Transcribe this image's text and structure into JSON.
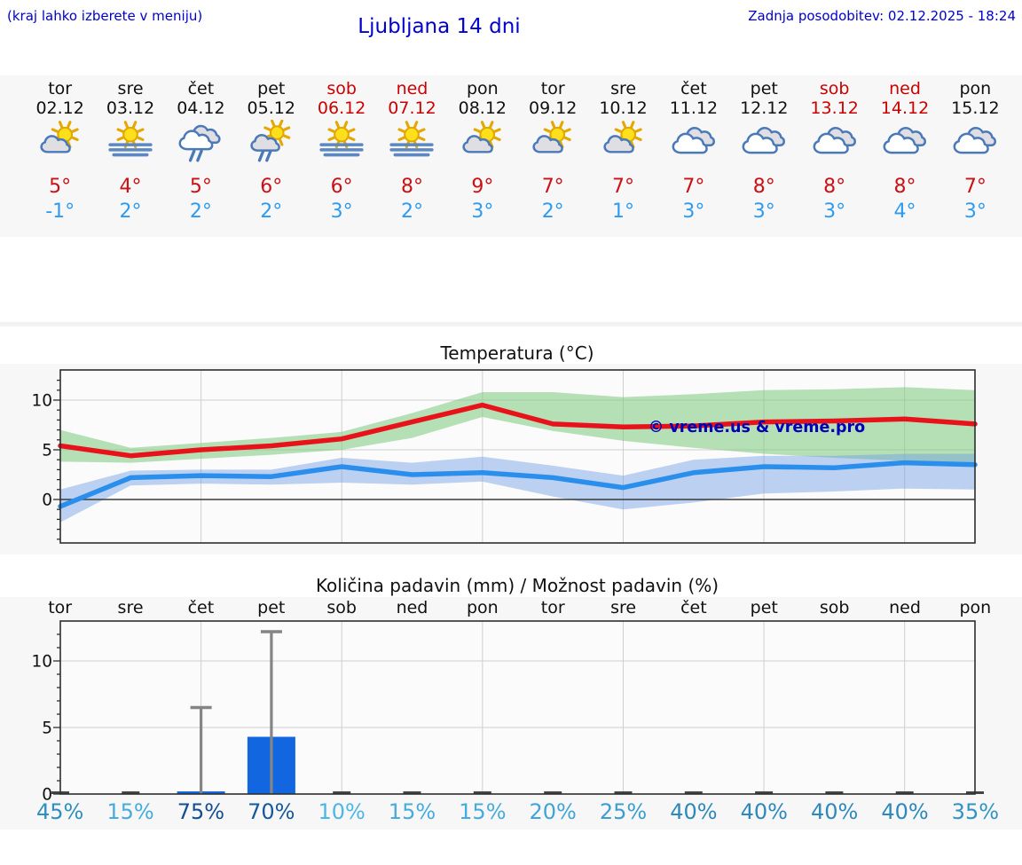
{
  "top": {
    "hint": "(kraj lahko izberete v meniju)",
    "title": "Ljubljana 14 dni",
    "updated": "Zadnja posodobitev: 02.12.2025 - 18:24"
  },
  "section_titles": {
    "temperature": "Temperatura (°C)",
    "precipitation": "Količina padavin (mm) / Možnost padavin (%)"
  },
  "days": [
    {
      "name": "tor",
      "date": "02.12",
      "weekend": false,
      "icon": "sun-cloud",
      "high": "5°",
      "low": "-1°",
      "prob": "45%",
      "prob_color": "#2e8fc0"
    },
    {
      "name": "sre",
      "date": "03.12",
      "weekend": false,
      "icon": "sun-fog",
      "high": "4°",
      "low": "2°",
      "prob": "15%",
      "prob_color": "#45acdd"
    },
    {
      "name": "čet",
      "date": "04.12",
      "weekend": false,
      "icon": "clouds-rain",
      "high": "5°",
      "low": "2°",
      "prob": "75%",
      "prob_color": "#124f92"
    },
    {
      "name": "pet",
      "date": "05.12",
      "weekend": false,
      "icon": "sun-cloud-rain",
      "high": "6°",
      "low": "2°",
      "prob": "70%",
      "prob_color": "#155a9e"
    },
    {
      "name": "sob",
      "date": "06.12",
      "weekend": true,
      "icon": "sun-fog",
      "high": "6°",
      "low": "3°",
      "prob": "10%",
      "prob_color": "#4db6e6"
    },
    {
      "name": "ned",
      "date": "07.12",
      "weekend": true,
      "icon": "sun-fog",
      "high": "8°",
      "low": "2°",
      "prob": "15%",
      "prob_color": "#45acdd"
    },
    {
      "name": "pon",
      "date": "08.12",
      "weekend": false,
      "icon": "sun-cloud",
      "high": "9°",
      "low": "3°",
      "prob": "15%",
      "prob_color": "#45acdd"
    },
    {
      "name": "tor",
      "date": "09.12",
      "weekend": false,
      "icon": "sun-cloud",
      "high": "7°",
      "low": "2°",
      "prob": "20%",
      "prob_color": "#40a5d6"
    },
    {
      "name": "sre",
      "date": "10.12",
      "weekend": false,
      "icon": "sun-cloud",
      "high": "7°",
      "low": "1°",
      "prob": "25%",
      "prob_color": "#3b9ecf"
    },
    {
      "name": "čet",
      "date": "11.12",
      "weekend": false,
      "icon": "clouds",
      "high": "7°",
      "low": "3°",
      "prob": "40%",
      "prob_color": "#2d89bb"
    },
    {
      "name": "pet",
      "date": "12.12",
      "weekend": false,
      "icon": "clouds",
      "high": "8°",
      "low": "3°",
      "prob": "40%",
      "prob_color": "#2d89bb"
    },
    {
      "name": "sob",
      "date": "13.12",
      "weekend": true,
      "icon": "clouds",
      "high": "8°",
      "low": "3°",
      "prob": "40%",
      "prob_color": "#2d89bb"
    },
    {
      "name": "ned",
      "date": "14.12",
      "weekend": true,
      "icon": "clouds",
      "high": "8°",
      "low": "4°",
      "prob": "40%",
      "prob_color": "#2d89bb"
    },
    {
      "name": "pon",
      "date": "15.12",
      "weekend": false,
      "icon": "clouds",
      "high": "7°",
      "low": "3°",
      "prob": "35%",
      "prob_color": "#3193c4"
    }
  ],
  "chart_data": [
    {
      "type": "line",
      "title": "Temperatura (°C)",
      "x_days": [
        "tor",
        "sre",
        "čet",
        "pet",
        "sob",
        "ned",
        "pon",
        "tor",
        "sre",
        "čet",
        "pet",
        "sob",
        "ned",
        "pon"
      ],
      "yticks": [
        0,
        5,
        10
      ],
      "ylim": [
        -4.4,
        13.0
      ],
      "grid": true,
      "watermark": "© vreme.us & vreme.pro",
      "series": [
        {
          "name": "high",
          "color": "#e8131a",
          "values": [
            5.4,
            4.4,
            5.0,
            5.4,
            6.1,
            7.8,
            9.5,
            7.6,
            7.3,
            7.4,
            7.8,
            7.9,
            8.1,
            7.6
          ]
        },
        {
          "name": "low",
          "color": "#2a8fec",
          "values": [
            -0.7,
            2.2,
            2.4,
            2.3,
            3.3,
            2.5,
            2.7,
            2.2,
            1.2,
            2.7,
            3.3,
            3.2,
            3.7,
            3.5
          ]
        }
      ],
      "bands": [
        {
          "name": "high-range",
          "color": "rgba(124,203,124,0.55)",
          "upper": [
            7.0,
            5.2,
            5.7,
            6.2,
            6.8,
            8.7,
            10.8,
            10.8,
            10.3,
            10.6,
            11.0,
            11.1,
            11.3,
            11.0
          ],
          "lower": [
            3.8,
            3.7,
            4.1,
            4.5,
            5.0,
            6.2,
            8.3,
            6.9,
            5.9,
            5.2,
            4.6,
            4.2,
            3.9,
            3.7
          ]
        },
        {
          "name": "low-range",
          "color": "rgba(110,156,229,0.45)",
          "upper": [
            1.0,
            2.9,
            3.0,
            3.0,
            4.2,
            3.7,
            4.3,
            3.4,
            2.4,
            4.0,
            4.4,
            4.4,
            4.6,
            4.6
          ],
          "lower": [
            -2.3,
            1.4,
            1.6,
            1.5,
            1.7,
            1.5,
            1.8,
            0.3,
            -1.0,
            -0.3,
            0.6,
            0.8,
            1.1,
            1.0
          ]
        }
      ]
    },
    {
      "type": "bar",
      "title": "Količina padavin (mm) / Možnost padavin (%)",
      "categories": [
        "tor",
        "sre",
        "čet",
        "pet",
        "sob",
        "ned",
        "pon",
        "tor",
        "sre",
        "čet",
        "pet",
        "sob",
        "ned",
        "pon"
      ],
      "values": [
        0,
        0,
        0.2,
        4.3,
        0,
        0,
        0,
        0,
        0,
        0,
        0,
        0,
        0,
        0
      ],
      "whisker_max": [
        0,
        0,
        6.5,
        12.2,
        0,
        0,
        0,
        0,
        0,
        0,
        0,
        0,
        0,
        0
      ],
      "probabilities_pct": [
        45,
        15,
        75,
        70,
        10,
        15,
        15,
        20,
        25,
        40,
        40,
        40,
        40,
        35
      ],
      "yticks": [
        0,
        5,
        10
      ],
      "ylim": [
        0,
        13.0
      ],
      "grid": true,
      "bar_color": "#1266e0",
      "whisker_color": "#858585"
    }
  ]
}
